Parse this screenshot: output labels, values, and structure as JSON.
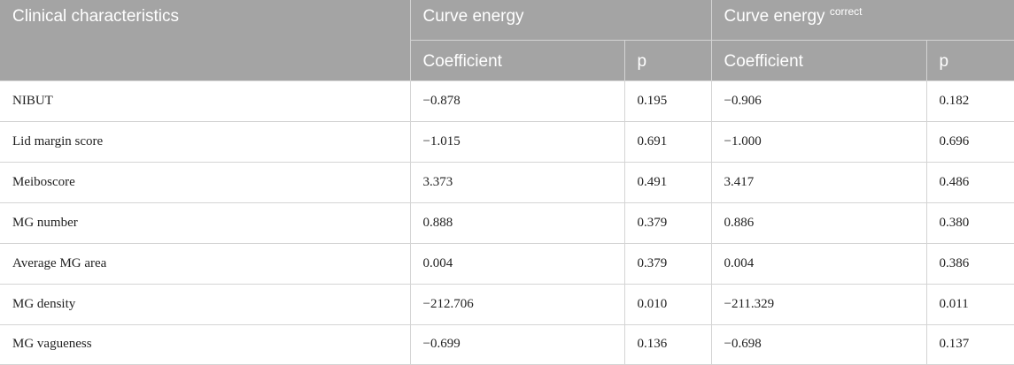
{
  "header": {
    "clinical": "Clinical characteristics",
    "curve_energy": "Curve energy",
    "curve_energy_correct": "Curve energy",
    "correct_superscript": "correct",
    "coefficient": "Coefficient",
    "p": "p"
  },
  "rows": [
    {
      "label": "NIBUT",
      "ce_coef": "−0.878",
      "ce_p": "0.195",
      "cc_coef": "−0.906",
      "cc_p": "0.182"
    },
    {
      "label": "Lid margin score",
      "ce_coef": "−1.015",
      "ce_p": "0.691",
      "cc_coef": "−1.000",
      "cc_p": "0.696"
    },
    {
      "label": "Meiboscore",
      "ce_coef": "3.373",
      "ce_p": "0.491",
      "cc_coef": "3.417",
      "cc_p": "0.486"
    },
    {
      "label": "MG number",
      "ce_coef": "0.888",
      "ce_p": "0.379",
      "cc_coef": "0.886",
      "cc_p": "0.380"
    },
    {
      "label": "Average MG area",
      "ce_coef": "0.004",
      "ce_p": "0.379",
      "cc_coef": "0.004",
      "cc_p": "0.386"
    },
    {
      "label": "MG density",
      "ce_coef": "−212.706",
      "ce_p": "0.010",
      "cc_coef": "−211.329",
      "cc_p": "0.011"
    },
    {
      "label": "MG vagueness",
      "ce_coef": "−0.699",
      "ce_p": "0.136",
      "cc_coef": "−0.698",
      "cc_p": "0.137"
    }
  ]
}
